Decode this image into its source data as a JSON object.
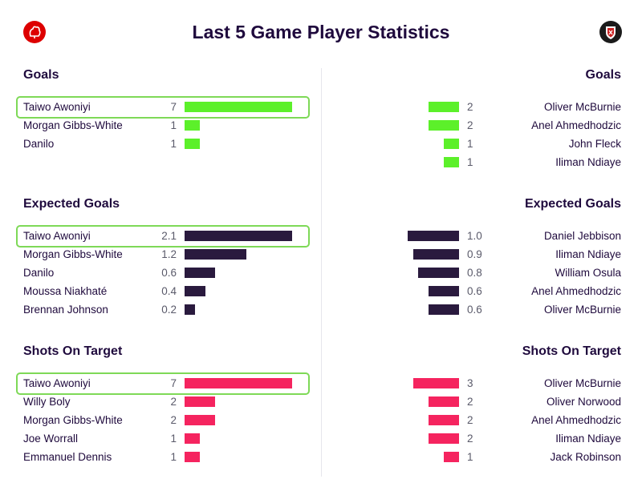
{
  "header": {
    "title": "Last 5 Game Player Statistics",
    "home_badge_icon": "nottingham-forest-crest-icon",
    "away_badge_icon": "sheffield-united-crest-icon"
  },
  "colors": {
    "goals": "#5cf02a",
    "xg": "#2a1a3e",
    "shots": "#f5245f",
    "highlight": "#7ed957"
  },
  "chart_data": [
    {
      "type": "bar",
      "title": "Goals",
      "max": 7,
      "left": {
        "team": "home",
        "rows": [
          {
            "name": "Taiwo Awoniyi",
            "value": 7,
            "display": "7",
            "highlighted": true
          },
          {
            "name": "Morgan Gibbs-White",
            "value": 1,
            "display": "1"
          },
          {
            "name": "Danilo",
            "value": 1,
            "display": "1"
          }
        ]
      },
      "right": {
        "team": "away",
        "rows": [
          {
            "name": "Oliver McBurnie",
            "value": 2,
            "display": "2"
          },
          {
            "name": "Anel Ahmedhodzic",
            "value": 2,
            "display": "2"
          },
          {
            "name": "John Fleck",
            "value": 1,
            "display": "1"
          },
          {
            "name": "Iliman Ndiaye",
            "value": 1,
            "display": "1"
          }
        ]
      }
    },
    {
      "type": "bar",
      "title": "Expected Goals",
      "max": 2.1,
      "left": {
        "team": "home",
        "rows": [
          {
            "name": "Taiwo Awoniyi",
            "value": 2.1,
            "display": "2.1",
            "highlighted": true
          },
          {
            "name": "Morgan Gibbs-White",
            "value": 1.2,
            "display": "1.2"
          },
          {
            "name": "Danilo",
            "value": 0.6,
            "display": "0.6"
          },
          {
            "name": "Moussa Niakhaté",
            "value": 0.4,
            "display": "0.4"
          },
          {
            "name": "Brennan Johnson",
            "value": 0.2,
            "display": "0.2"
          }
        ]
      },
      "right": {
        "team": "away",
        "rows": [
          {
            "name": "Daniel Jebbison",
            "value": 1.0,
            "display": "1.0"
          },
          {
            "name": "Iliman Ndiaye",
            "value": 0.9,
            "display": "0.9"
          },
          {
            "name": "William Osula",
            "value": 0.8,
            "display": "0.8"
          },
          {
            "name": "Anel Ahmedhodzic",
            "value": 0.6,
            "display": "0.6"
          },
          {
            "name": "Oliver McBurnie",
            "value": 0.6,
            "display": "0.6"
          }
        ]
      }
    },
    {
      "type": "bar",
      "title": "Shots On Target",
      "max": 7,
      "left": {
        "team": "home",
        "rows": [
          {
            "name": "Taiwo Awoniyi",
            "value": 7,
            "display": "7",
            "highlighted": true
          },
          {
            "name": "Willy Boly",
            "value": 2,
            "display": "2"
          },
          {
            "name": "Morgan Gibbs-White",
            "value": 2,
            "display": "2"
          },
          {
            "name": "Joe Worrall",
            "value": 1,
            "display": "1"
          },
          {
            "name": "Emmanuel Dennis",
            "value": 1,
            "display": "1"
          }
        ]
      },
      "right": {
        "team": "away",
        "rows": [
          {
            "name": "Oliver McBurnie",
            "value": 3,
            "display": "3"
          },
          {
            "name": "Oliver Norwood",
            "value": 2,
            "display": "2"
          },
          {
            "name": "Anel Ahmedhodzic",
            "value": 2,
            "display": "2"
          },
          {
            "name": "Iliman Ndiaye",
            "value": 2,
            "display": "2"
          },
          {
            "name": "Jack Robinson",
            "value": 1,
            "display": "1"
          }
        ]
      }
    }
  ]
}
